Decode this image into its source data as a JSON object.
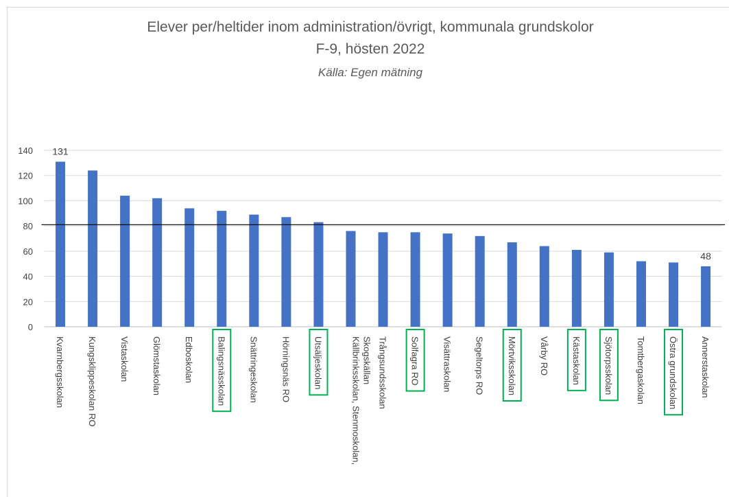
{
  "chart_data": {
    "type": "bar",
    "title": "Elever per/heltider inom administration/övrigt, kommunala grundskolor",
    "subtitle": "F-9, hösten 2022",
    "source": "Källa: Egen mätning",
    "categories": [
      "Kvarnbergsskolan",
      "Kungsklippeskolan RO",
      "Vistaskolan",
      "Glömstaskolan",
      "Edboskolan",
      "Balingsnässkolan",
      "Snättringeskolan",
      "Hörningsnäs RO",
      "Utsäljeskolan",
      "Källbrinksskolan, Stenmoskolan, Skogskällan",
      "Trångsundsskolan",
      "Solfagra RO",
      "Visättraskolan",
      "Segeltorps RO",
      "Mörtviksskolan",
      "Vårby RO",
      "Kästaskolan",
      "Sjötorpsskolan",
      "Tomtbergaskolan",
      "Östra grundskolan",
      "Annerstaskolan"
    ],
    "values": [
      131,
      124,
      104,
      102,
      94,
      92,
      89,
      87,
      83,
      76,
      75,
      75,
      74,
      72,
      67,
      64,
      61,
      59,
      52,
      51,
      48
    ],
    "data_labels": [
      true,
      false,
      false,
      false,
      false,
      false,
      false,
      false,
      false,
      false,
      false,
      false,
      false,
      false,
      false,
      false,
      false,
      false,
      false,
      false,
      true
    ],
    "highlighted": [
      false,
      false,
      false,
      false,
      false,
      true,
      false,
      false,
      true,
      false,
      false,
      true,
      false,
      false,
      true,
      false,
      true,
      true,
      false,
      true,
      false
    ],
    "highlight_color": "#00b050",
    "color": "#4472c4",
    "reference_line": 81,
    "ylim": [
      0,
      140
    ],
    "yticks": [
      0,
      20,
      40,
      60,
      80,
      100,
      120,
      140
    ],
    "grid": true
  }
}
